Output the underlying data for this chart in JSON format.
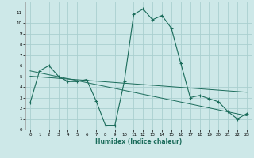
{
  "xlabel": "Humidex (Indice chaleur)",
  "x_ticks": [
    0,
    1,
    2,
    3,
    4,
    5,
    6,
    7,
    8,
    9,
    10,
    11,
    12,
    13,
    14,
    15,
    16,
    17,
    18,
    19,
    20,
    21,
    22,
    23
  ],
  "xlim": [
    -0.5,
    23.5
  ],
  "ylim": [
    0,
    12
  ],
  "y_ticks": [
    0,
    1,
    2,
    3,
    4,
    5,
    6,
    7,
    8,
    9,
    10,
    11
  ],
  "bg_color": "#cde8e8",
  "grid_color": "#aacfcf",
  "line_color": "#1a6b5a",
  "series1": {
    "x": [
      0,
      1,
      2,
      3,
      4,
      5,
      6,
      7,
      8,
      9,
      10,
      11,
      12,
      13,
      14,
      15,
      16,
      17,
      18,
      19,
      20,
      21,
      22,
      23
    ],
    "y": [
      2.5,
      5.5,
      6.0,
      5.0,
      4.5,
      4.5,
      4.7,
      2.7,
      0.4,
      0.4,
      4.5,
      10.8,
      11.3,
      10.3,
      10.7,
      9.5,
      6.2,
      3.0,
      3.2,
      2.9,
      2.6,
      1.7,
      1.0,
      1.5
    ]
  },
  "series2": {
    "x": [
      0,
      23
    ],
    "y": [
      5.5,
      1.3
    ]
  },
  "series3": {
    "x": [
      0,
      23
    ],
    "y": [
      5.0,
      3.5
    ]
  }
}
